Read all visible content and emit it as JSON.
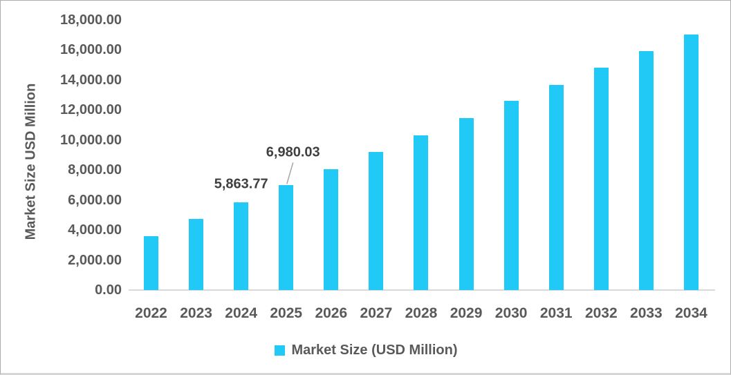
{
  "chart_data": {
    "type": "bar",
    "title": "",
    "categories": [
      "2022",
      "2023",
      "2024",
      "2025",
      "2026",
      "2027",
      "2028",
      "2029",
      "2030",
      "2031",
      "2032",
      "2033",
      "2034"
    ],
    "series": [
      {
        "name": "Market Size (USD Million)",
        "values": [
          3610,
          4750,
          5863.77,
          6980.03,
          8070,
          9190,
          10310,
          11460,
          12600,
          13690,
          14840,
          15930,
          17040
        ]
      }
    ],
    "xlabel": "",
    "ylabel": "Market Size USD Million",
    "ylim": [
      0,
      18000
    ],
    "ytick_step": 2000,
    "ytick_labels": [
      "0.00",
      "2,000.00",
      "4,000.00",
      "6,000.00",
      "8,000.00",
      "10,000.00",
      "12,000.00",
      "14,000.00",
      "16,000.00",
      "18,000.00"
    ],
    "grid": false,
    "legend_position": "bottom",
    "data_labels": [
      {
        "category": "2024",
        "text": "5,863.77",
        "leader_line": false
      },
      {
        "category": "2025",
        "text": "6,980.03",
        "leader_line": true
      }
    ]
  },
  "colors": {
    "bar": "#20C9F6",
    "axis_text": "#595959",
    "data_label_text": "#404040",
    "axis_line": "#D9D9D9",
    "leader_line": "#A6A6A6",
    "frame_border": "#ABABAB"
  }
}
